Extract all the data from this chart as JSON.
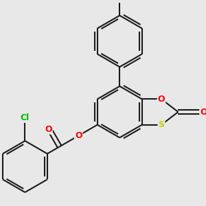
{
  "bg_color": "#e8e8e8",
  "bond_color": "#1a1a1a",
  "bond_width": 1.5,
  "atom_colors": {
    "O": "#ff0000",
    "S": "#cccc00",
    "Cl": "#00bb00",
    "C": "#1a1a1a"
  },
  "font_size": 9,
  "figsize": [
    3.0,
    3.0
  ],
  "dpi": 100,
  "xlim": [
    -2.8,
    2.8
  ],
  "ylim": [
    -2.8,
    2.8
  ]
}
